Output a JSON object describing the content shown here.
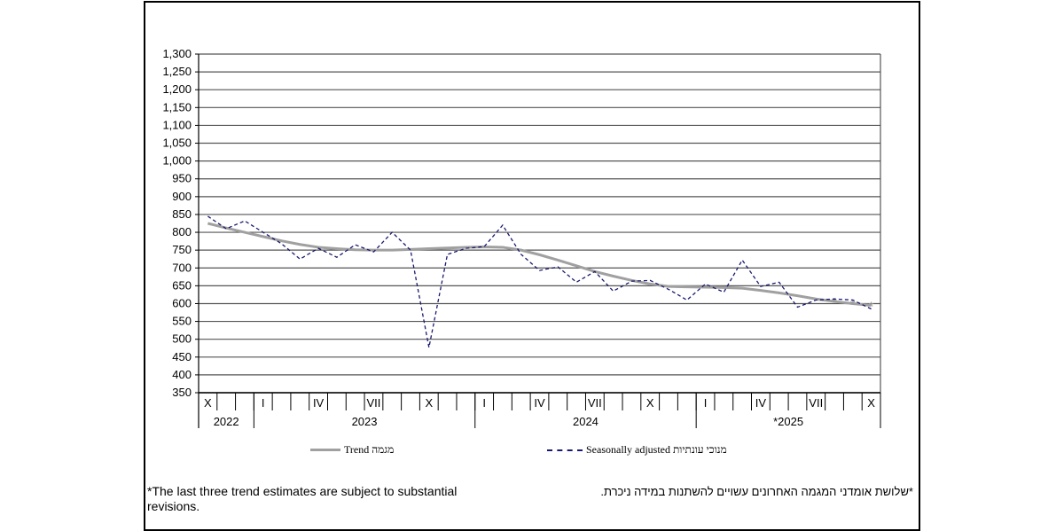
{
  "chart_data": {
    "type": "line",
    "title": "",
    "xlabel": "",
    "ylabel": "",
    "ylim": [
      350,
      1300
    ],
    "ystep": 50,
    "grid": true,
    "y_ticks": [
      "350",
      "400",
      "450",
      "500",
      "550",
      "600",
      "650",
      "700",
      "750",
      "800",
      "850",
      "900",
      "950",
      "1,000",
      "1,050",
      "1,100",
      "1,150",
      "1,200",
      "1,250",
      "1,300"
    ],
    "month_labels": [
      "X",
      "",
      "",
      "I",
      "",
      "",
      "IV",
      "",
      "",
      "VII",
      "",
      "",
      "X",
      "",
      "",
      "I",
      "",
      "",
      "IV",
      "",
      "",
      "VII",
      "",
      "",
      "X",
      "",
      "",
      "I",
      "",
      "",
      "IV",
      "",
      "",
      "VII",
      "",
      "",
      "X"
    ],
    "year_labels": [
      {
        "label": "2022",
        "start": 0,
        "end": 3
      },
      {
        "label": "2023",
        "start": 3,
        "end": 15
      },
      {
        "label": "2024",
        "start": 15,
        "end": 27
      },
      {
        "label": "*2025",
        "start": 27,
        "end": 37
      }
    ],
    "series": [
      {
        "name": "Trend מגמה",
        "color": "#a0a0a0",
        "style": "solid",
        "values": [
          825,
          812,
          800,
          788,
          776,
          766,
          758,
          754,
          751,
          750,
          750,
          752,
          754,
          756,
          758,
          759,
          758,
          750,
          737,
          722,
          706,
          690,
          677,
          665,
          655,
          648,
          647,
          646,
          645,
          643,
          637,
          630,
          622,
          613,
          606,
          600,
          595
        ],
        "estimate_points": 3
      },
      {
        "name": "Seasonally adjusted מנוכי עונתיות",
        "color": "#1a1a6e",
        "style": "dashed",
        "values": [
          845,
          810,
          832,
          800,
          768,
          725,
          755,
          730,
          765,
          745,
          800,
          750,
          477,
          738,
          755,
          760,
          820,
          738,
          693,
          703,
          660,
          690,
          635,
          663,
          665,
          640,
          610,
          655,
          632,
          722,
          648,
          660,
          590,
          610,
          613,
          610,
          585
        ]
      }
    ],
    "legend": [
      {
        "label": "Trend מגמה"
      },
      {
        "label": "Seasonally adjusted מנוכי עונתיות"
      }
    ],
    "legend_position": "bottom"
  },
  "notes": {
    "english": "*The last three trend estimates are subject to substantial revisions.",
    "hebrew": "*שלושת אומדני המגמה האחרונים עשויים להשתנות במידה ניכרת."
  }
}
